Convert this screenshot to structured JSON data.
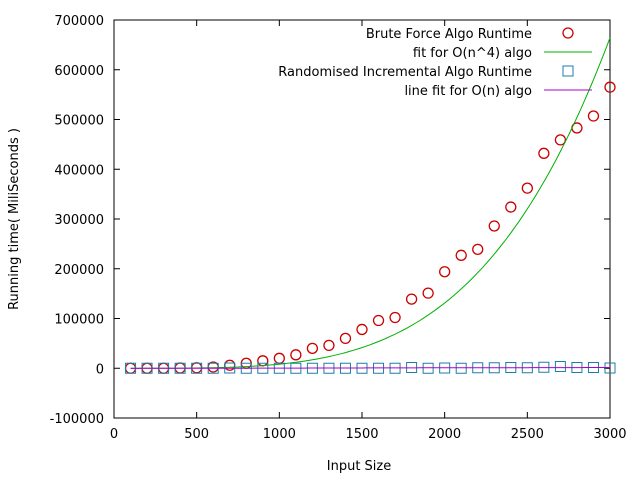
{
  "chart_data": {
    "type": "scatter",
    "title": "",
    "xlabel": "Input Size",
    "ylabel": "Running time( MiliSeconds )",
    "xlim": [
      0,
      3000
    ],
    "ylim": [
      -100000,
      700000
    ],
    "x_ticks": [
      0,
      500,
      1000,
      1500,
      2000,
      2500,
      3000
    ],
    "y_ticks": [
      -100000,
      0,
      100000,
      200000,
      300000,
      400000,
      500000,
      600000,
      700000
    ],
    "grid": false,
    "legend_position": "top-right",
    "series": [
      {
        "name": "Brute Force Algo Runtime",
        "kind": "points",
        "marker": "circle",
        "color": "#cc0000",
        "x": [
          100,
          200,
          300,
          400,
          500,
          600,
          700,
          800,
          900,
          1000,
          1100,
          1200,
          1300,
          1400,
          1500,
          1600,
          1700,
          1800,
          1900,
          2000,
          2100,
          2200,
          2300,
          2400,
          2500,
          2600,
          2700,
          2800,
          2900,
          3000
        ],
        "y": [
          0,
          0,
          0,
          500,
          1000,
          2500,
          6000,
          10000,
          15000,
          20000,
          27000,
          40000,
          46000,
          60000,
          78000,
          96000,
          102000,
          139000,
          151000,
          194000,
          227000,
          239000,
          286000,
          324000,
          362000,
          432000,
          459000,
          483000,
          507000,
          565000
        ]
      },
      {
        "name": "fit for O(n^4) algo",
        "kind": "line",
        "model": "y = a*x^4",
        "a": 8.2e-09,
        "color": "#00b000"
      },
      {
        "name": "Randomised Incremental Algo Runtime",
        "kind": "points",
        "marker": "square",
        "color": "#1a7fa8",
        "x": [
          100,
          200,
          300,
          400,
          500,
          600,
          700,
          800,
          900,
          1000,
          1100,
          1200,
          1300,
          1400,
          1500,
          1600,
          1700,
          1800,
          1900,
          2000,
          2100,
          2200,
          2300,
          2400,
          2500,
          2600,
          2700,
          2800,
          2900,
          3000
        ],
        "y": [
          0,
          0,
          0,
          0,
          0,
          0,
          500,
          0,
          0,
          0,
          0,
          0,
          0,
          0,
          0,
          0,
          0,
          1500,
          0,
          500,
          0,
          1000,
          1000,
          1500,
          1000,
          2000,
          3500,
          1500,
          1500,
          500
        ]
      },
      {
        "name": "line fit for O(n) algo",
        "kind": "line",
        "model": "y = m*x + c",
        "m": 0.6,
        "c": -300,
        "color": "#aa00cc"
      }
    ]
  }
}
